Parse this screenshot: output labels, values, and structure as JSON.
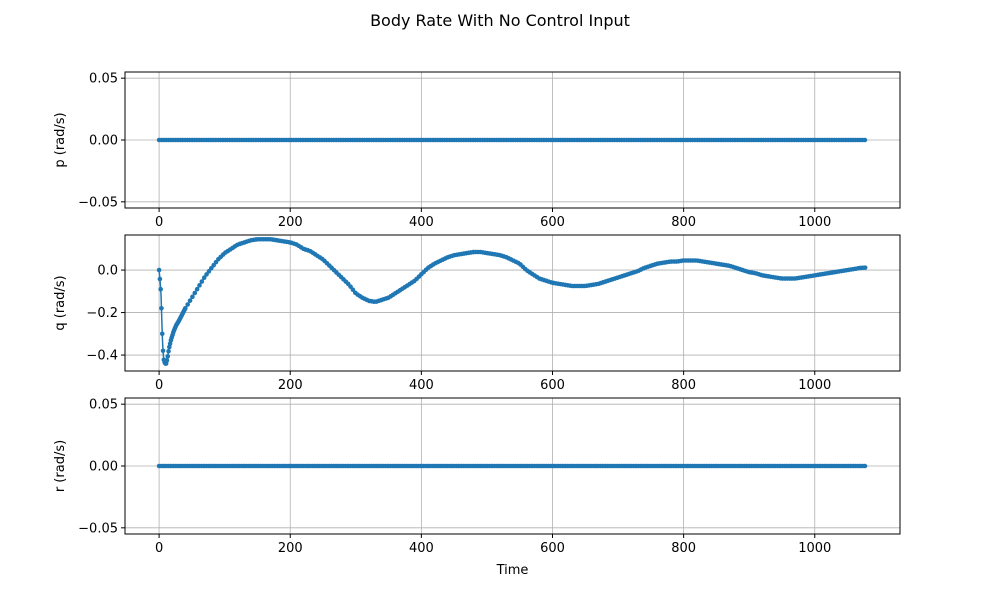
{
  "figure": {
    "title": "Body Rate With No Control Input",
    "series_color": "#1f77b4"
  },
  "chart_data": [
    {
      "type": "line",
      "marker": "circle",
      "grid": true,
      "xlabel": "",
      "ylabel": "p (rad/s)",
      "xlim": [
        -52,
        1130
      ],
      "ylim": [
        -0.055,
        0.055
      ],
      "xticks": [
        0,
        200,
        400,
        600,
        800,
        1000
      ],
      "yticks": [
        -0.05,
        0.0,
        0.05
      ],
      "ytick_labels": [
        "−0.05",
        "0.00",
        "0.05"
      ],
      "x_range": [
        0,
        1080
      ],
      "points": [
        [
          0,
          0.0
        ],
        [
          1080,
          0.0
        ]
      ]
    },
    {
      "type": "line",
      "marker": "circle",
      "grid": true,
      "xlabel": "",
      "ylabel": "q (rad/s)",
      "xlim": [
        -52,
        1130
      ],
      "ylim": [
        -0.475,
        0.165
      ],
      "xticks": [
        0,
        200,
        400,
        600,
        800,
        1000
      ],
      "yticks": [
        -0.4,
        -0.2,
        0.0
      ],
      "ytick_labels": [
        "−0.4",
        "−0.2",
        "0.0"
      ],
      "x_range": [
        0,
        1080
      ],
      "points": [
        [
          0,
          0.0
        ],
        [
          2,
          -0.07
        ],
        [
          3,
          -0.12
        ],
        [
          4,
          -0.22
        ],
        [
          5,
          -0.32
        ],
        [
          6,
          -0.38
        ],
        [
          7,
          -0.42
        ],
        [
          9,
          -0.44
        ],
        [
          11,
          -0.44
        ],
        [
          13,
          -0.41
        ],
        [
          15,
          -0.37
        ],
        [
          18,
          -0.33
        ],
        [
          22,
          -0.29
        ],
        [
          26,
          -0.26
        ],
        [
          30,
          -0.24
        ],
        [
          40,
          -0.18
        ],
        [
          50,
          -0.13
        ],
        [
          60,
          -0.08
        ],
        [
          70,
          -0.03
        ],
        [
          80,
          0.01
        ],
        [
          90,
          0.05
        ],
        [
          100,
          0.08
        ],
        [
          110,
          0.1
        ],
        [
          120,
          0.12
        ],
        [
          130,
          0.13
        ],
        [
          140,
          0.14
        ],
        [
          150,
          0.145
        ],
        [
          160,
          0.145
        ],
        [
          170,
          0.145
        ],
        [
          180,
          0.14
        ],
        [
          190,
          0.135
        ],
        [
          200,
          0.13
        ],
        [
          210,
          0.12
        ],
        [
          220,
          0.1
        ],
        [
          230,
          0.09
        ],
        [
          240,
          0.07
        ],
        [
          250,
          0.05
        ],
        [
          260,
          0.02
        ],
        [
          270,
          -0.01
        ],
        [
          280,
          -0.04
        ],
        [
          290,
          -0.07
        ],
        [
          300,
          -0.11
        ],
        [
          310,
          -0.13
        ],
        [
          320,
          -0.145
        ],
        [
          330,
          -0.15
        ],
        [
          340,
          -0.14
        ],
        [
          350,
          -0.13
        ],
        [
          360,
          -0.11
        ],
        [
          370,
          -0.09
        ],
        [
          380,
          -0.07
        ],
        [
          390,
          -0.05
        ],
        [
          400,
          -0.02
        ],
        [
          410,
          0.01
        ],
        [
          420,
          0.03
        ],
        [
          430,
          0.045
        ],
        [
          440,
          0.06
        ],
        [
          450,
          0.07
        ],
        [
          460,
          0.075
        ],
        [
          470,
          0.08
        ],
        [
          480,
          0.085
        ],
        [
          490,
          0.085
        ],
        [
          500,
          0.08
        ],
        [
          510,
          0.075
        ],
        [
          520,
          0.07
        ],
        [
          530,
          0.06
        ],
        [
          540,
          0.045
        ],
        [
          550,
          0.03
        ],
        [
          560,
          0.0
        ],
        [
          570,
          -0.02
        ],
        [
          580,
          -0.04
        ],
        [
          590,
          -0.05
        ],
        [
          600,
          -0.06
        ],
        [
          610,
          -0.065
        ],
        [
          620,
          -0.07
        ],
        [
          630,
          -0.075
        ],
        [
          640,
          -0.075
        ],
        [
          650,
          -0.075
        ],
        [
          660,
          -0.07
        ],
        [
          670,
          -0.065
        ],
        [
          680,
          -0.055
        ],
        [
          690,
          -0.045
        ],
        [
          700,
          -0.035
        ],
        [
          710,
          -0.025
        ],
        [
          720,
          -0.015
        ],
        [
          730,
          -0.005
        ],
        [
          740,
          0.01
        ],
        [
          750,
          0.02
        ],
        [
          760,
          0.03
        ],
        [
          770,
          0.035
        ],
        [
          780,
          0.04
        ],
        [
          790,
          0.04
        ],
        [
          800,
          0.045
        ],
        [
          810,
          0.045
        ],
        [
          820,
          0.045
        ],
        [
          830,
          0.04
        ],
        [
          840,
          0.035
        ],
        [
          850,
          0.03
        ],
        [
          860,
          0.025
        ],
        [
          870,
          0.02
        ],
        [
          880,
          0.01
        ],
        [
          890,
          0.0
        ],
        [
          900,
          -0.01
        ],
        [
          910,
          -0.015
        ],
        [
          920,
          -0.025
        ],
        [
          930,
          -0.03
        ],
        [
          940,
          -0.035
        ],
        [
          950,
          -0.04
        ],
        [
          960,
          -0.04
        ],
        [
          970,
          -0.04
        ],
        [
          980,
          -0.035
        ],
        [
          990,
          -0.03
        ],
        [
          1000,
          -0.025
        ],
        [
          1010,
          -0.02
        ],
        [
          1020,
          -0.015
        ],
        [
          1030,
          -0.01
        ],
        [
          1040,
          -0.005
        ],
        [
          1050,
          0.0
        ],
        [
          1060,
          0.005
        ],
        [
          1070,
          0.01
        ],
        [
          1080,
          0.012
        ]
      ]
    },
    {
      "type": "line",
      "marker": "circle",
      "grid": true,
      "xlabel": "Time",
      "ylabel": "r (rad/s)",
      "xlim": [
        -52,
        1130
      ],
      "ylim": [
        -0.055,
        0.055
      ],
      "xticks": [
        0,
        200,
        400,
        600,
        800,
        1000
      ],
      "yticks": [
        -0.05,
        0.0,
        0.05
      ],
      "ytick_labels": [
        "−0.05",
        "0.00",
        "0.05"
      ],
      "x_range": [
        0,
        1080
      ],
      "points": [
        [
          0,
          0.0
        ],
        [
          1080,
          0.0
        ]
      ]
    }
  ]
}
